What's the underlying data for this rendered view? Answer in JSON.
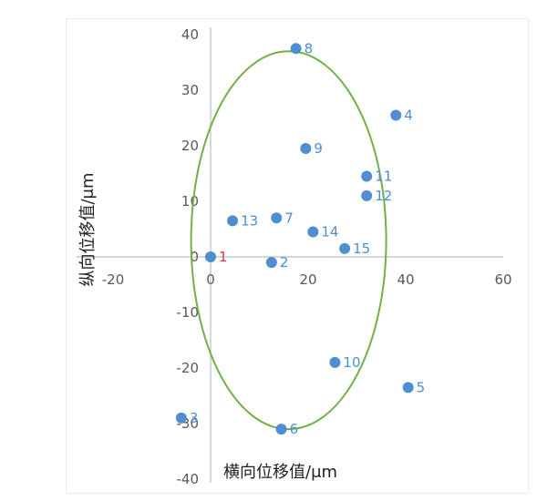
{
  "chart_data": {
    "type": "scatter",
    "xlabel": "横向位移值/μm",
    "ylabel": "纵向位移值/μm",
    "xlim": [
      -20,
      60
    ],
    "ylim": [
      -40,
      40
    ],
    "xticks": [
      "-20",
      "0",
      "20",
      "40",
      "60"
    ],
    "yticks": [
      "40",
      "30",
      "20",
      "10",
      "0",
      "-10",
      "-20",
      "-30",
      "-40"
    ],
    "grid": false,
    "legend": "none",
    "marker_color": "#4f8ed1",
    "highlight_label_color": "#e03c31",
    "ellipse_color": "#72b043",
    "points": [
      {
        "label": "1",
        "x": 0,
        "y": 0,
        "highlight": true
      },
      {
        "label": "2",
        "x": 12.5,
        "y": -1
      },
      {
        "label": "3",
        "x": -6,
        "y": -29
      },
      {
        "label": "4",
        "x": 38,
        "y": 25.5
      },
      {
        "label": "5",
        "x": 40.5,
        "y": -23.5
      },
      {
        "label": "6",
        "x": 14.5,
        "y": -31
      },
      {
        "label": "7",
        "x": 13.5,
        "y": 7
      },
      {
        "label": "8",
        "x": 17.5,
        "y": 37.5
      },
      {
        "label": "9",
        "x": 19.5,
        "y": 19.5
      },
      {
        "label": "10",
        "x": 25.5,
        "y": -19
      },
      {
        "label": "11",
        "x": 32,
        "y": 14.5
      },
      {
        "label": "12",
        "x": 32,
        "y": 11
      },
      {
        "label": "13",
        "x": 4.5,
        "y": 6.5
      },
      {
        "label": "14",
        "x": 21,
        "y": 4.5
      },
      {
        "label": "15",
        "x": 27.5,
        "y": 1.5
      }
    ],
    "ellipse": {
      "cx": 16,
      "cy": 3,
      "rx": 20,
      "ry": 34
    }
  }
}
